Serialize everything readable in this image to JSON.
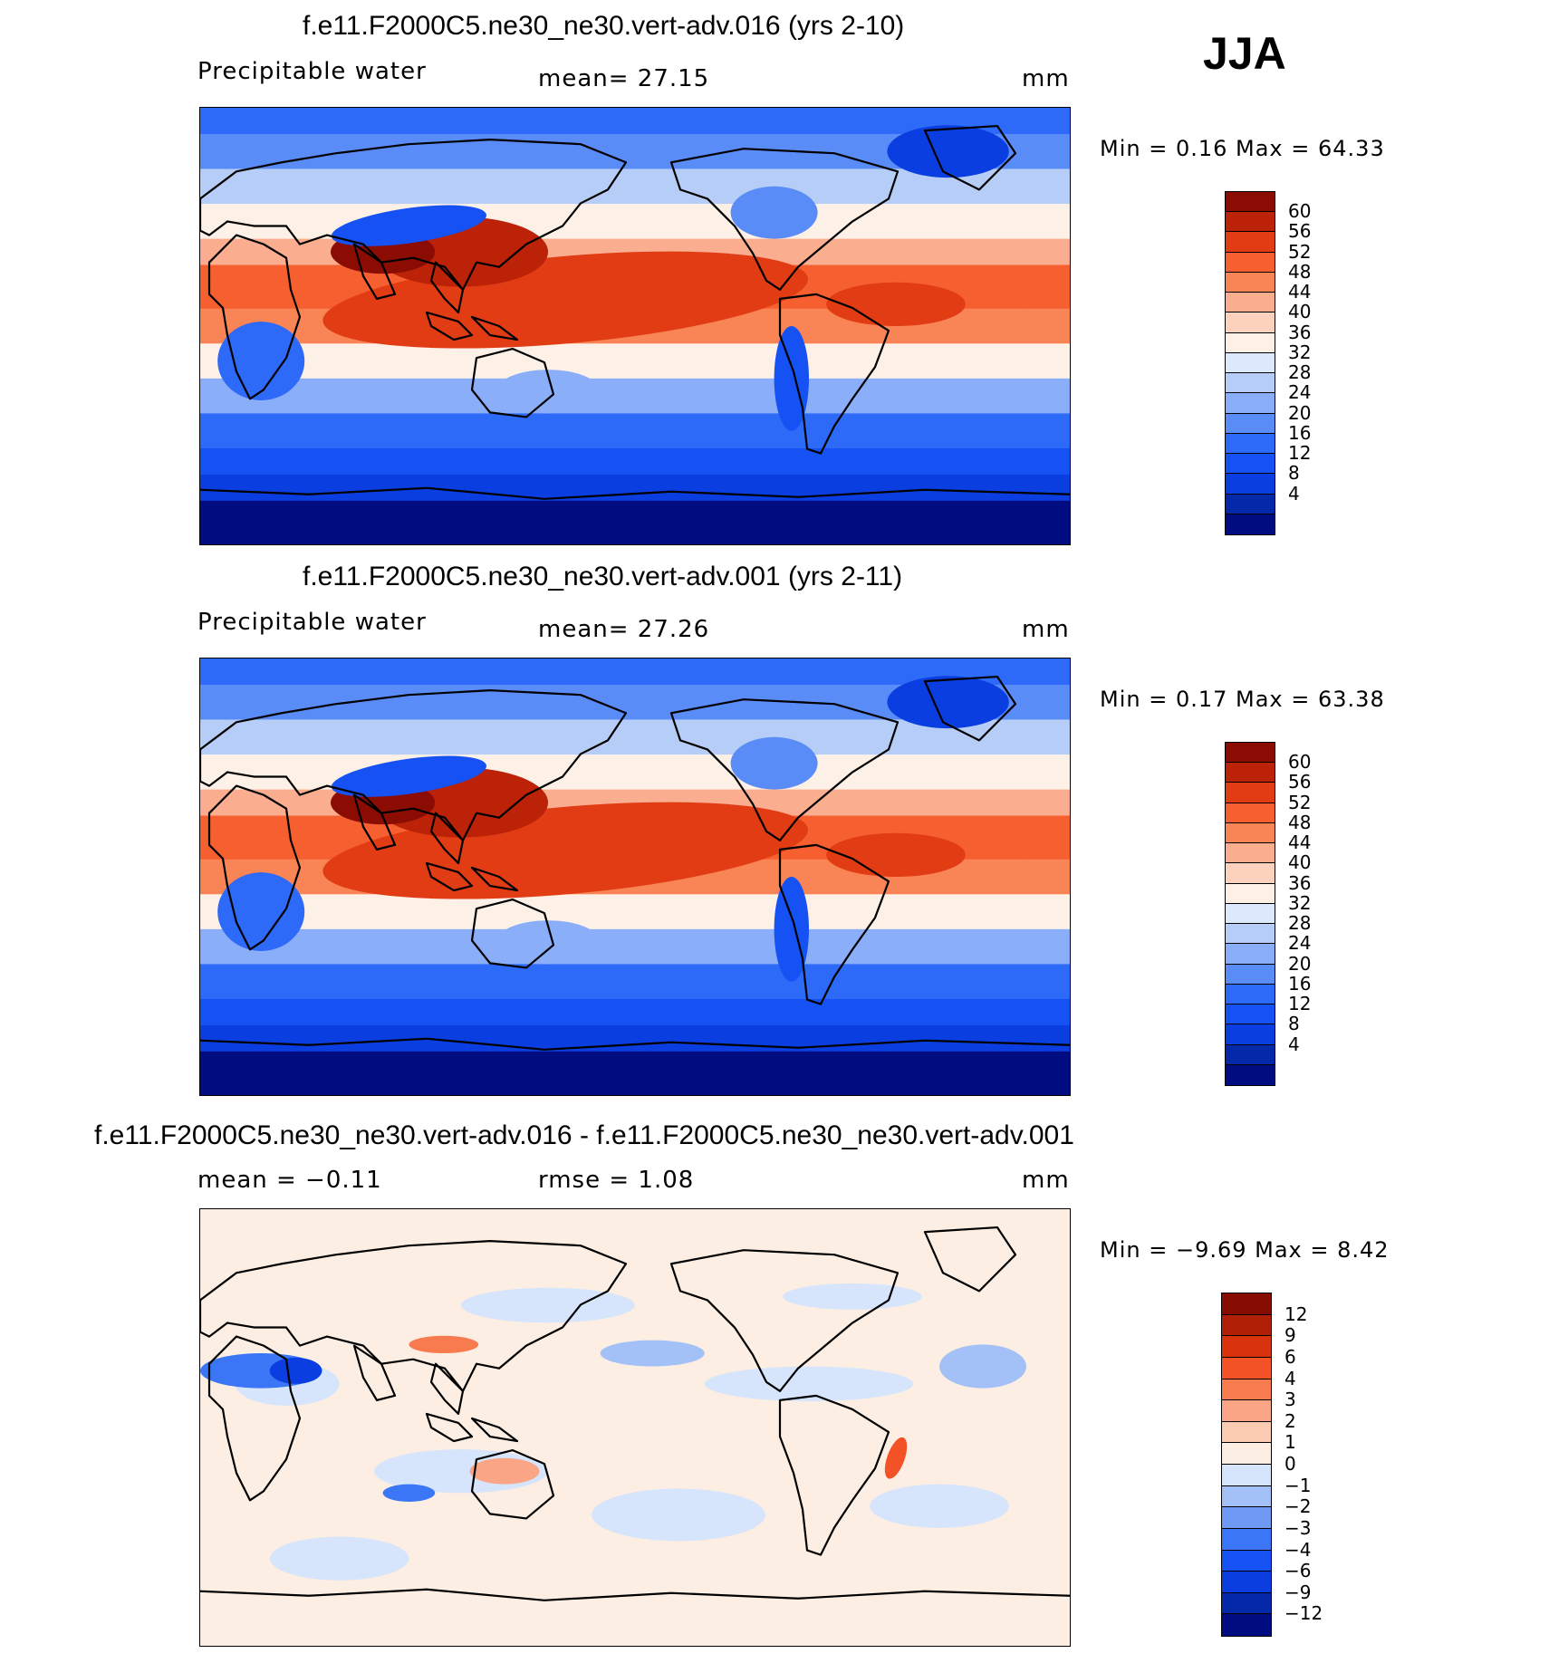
{
  "season": "JJA",
  "palettes": {
    "pw": [
      "#000c80",
      "#0328a8",
      "#0a3ee0",
      "#1652f3",
      "#2d6af8",
      "#5a8cf7",
      "#8aaef7",
      "#b6cdf7",
      "#dce8fb",
      "#fdf0e6",
      "#fcd2bc",
      "#fbad8f",
      "#f98456",
      "#f65f2f",
      "#e23c14",
      "#bb2208",
      "#8a0c02"
    ],
    "diff": [
      "#000c80",
      "#0328a8",
      "#0a3ee0",
      "#1652f3",
      "#3a76f6",
      "#6e9af6",
      "#a3c1f6",
      "#d6e5fb",
      "#fdeee3",
      "#fbcbb2",
      "#f9a586",
      "#f87a4f",
      "#f35227",
      "#d8330d",
      "#b01f06",
      "#870c02"
    ]
  },
  "panels": [
    {
      "title": "f.e11.F2000C5.ne30_ne30.vert-adv.016 (yrs 2-10)",
      "left_label": "Precipitable water",
      "mid_label": "mean=   27.15",
      "units": "mm",
      "minmax": "Min =     0.16  Max =    64.33",
      "field": "pw",
      "colorbar_labels": [
        "60",
        "56",
        "52",
        "48",
        "44",
        "40",
        "36",
        "32",
        "28",
        "24",
        "20",
        "16",
        "12",
        "8",
        "4"
      ]
    },
    {
      "title": "f.e11.F2000C5.ne30_ne30.vert-adv.001 (yrs 2-11)",
      "left_label": "Precipitable water",
      "mid_label": "mean=   27.26",
      "units": "mm",
      "minmax": "Min =     0.17  Max =    63.38",
      "field": "pw",
      "colorbar_labels": [
        "60",
        "56",
        "52",
        "48",
        "44",
        "40",
        "36",
        "32",
        "28",
        "24",
        "20",
        "16",
        "12",
        "8",
        "4"
      ]
    },
    {
      "title": "f.e11.F2000C5.ne30_ne30.vert-adv.016 - f.e11.F2000C5.ne30_ne30.vert-adv.001",
      "left_label": "mean =   −0.11",
      "mid_label": "rmse =     1.08",
      "units": "mm",
      "minmax": "Min =   −9.69  Max =     8.42",
      "field": "diff",
      "colorbar_labels": [
        "12",
        "9",
        "6",
        "4",
        "3",
        "2",
        "1",
        "0",
        "−1",
        "−2",
        "−3",
        "−4",
        "−6",
        "−9",
        "−12"
      ]
    }
  ]
}
